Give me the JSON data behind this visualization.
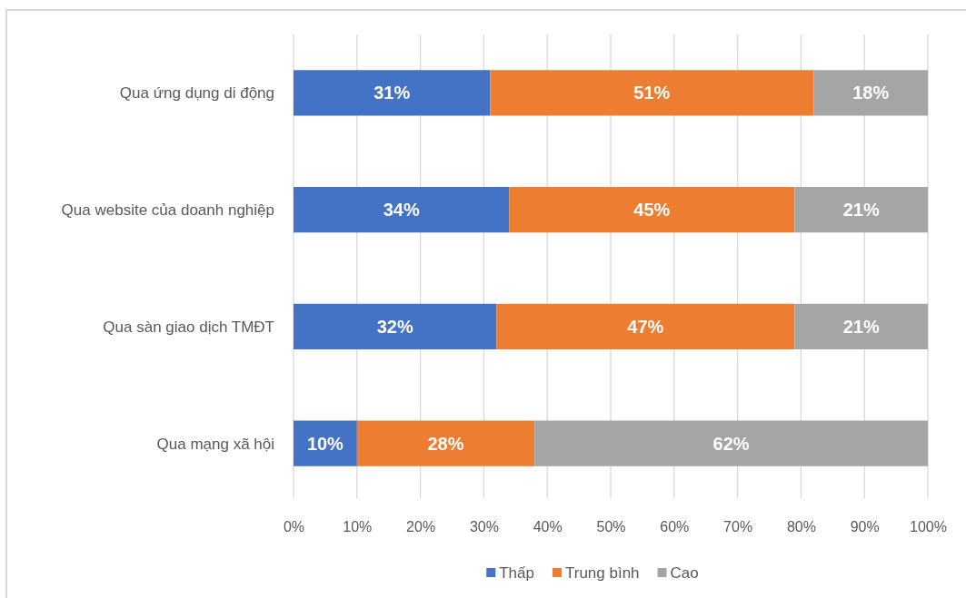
{
  "chart_data": {
    "type": "bar",
    "orientation": "horizontal",
    "stacked": true,
    "categories": [
      "Qua ứng dụng di động",
      "Qua website của doanh nghiệp",
      "Qua sàn giao dịch TMĐT",
      "Qua mạng xã hội"
    ],
    "series": [
      {
        "name": "Thấp",
        "color": "#4472c4",
        "values": [
          31,
          34,
          32,
          10
        ],
        "value_labels": [
          "31%",
          "34%",
          "32%",
          "10%"
        ]
      },
      {
        "name": "Trung bình",
        "color": "#ed7d31",
        "values": [
          51,
          45,
          47,
          28
        ],
        "value_labels": [
          "51%",
          "45%",
          "47%",
          "28%"
        ]
      },
      {
        "name": "Cao",
        "color": "#a5a5a5",
        "values": [
          18,
          21,
          21,
          62
        ],
        "value_labels": [
          "18%",
          "21%",
          "21%",
          "62%"
        ]
      }
    ],
    "xlim": [
      0,
      100
    ],
    "xticks": [
      {
        "value": 0,
        "label": "0%"
      },
      {
        "value": 10,
        "label": "10%"
      },
      {
        "value": 20,
        "label": "20%"
      },
      {
        "value": 30,
        "label": "30%"
      },
      {
        "value": 40,
        "label": "40%"
      },
      {
        "value": 50,
        "label": "50%"
      },
      {
        "value": 60,
        "label": "60%"
      },
      {
        "value": 70,
        "label": "70%"
      },
      {
        "value": 80,
        "label": "80%"
      },
      {
        "value": 90,
        "label": "90%"
      },
      {
        "value": 100,
        "label": "100%"
      }
    ],
    "grid": "x",
    "legend": "bottom"
  }
}
